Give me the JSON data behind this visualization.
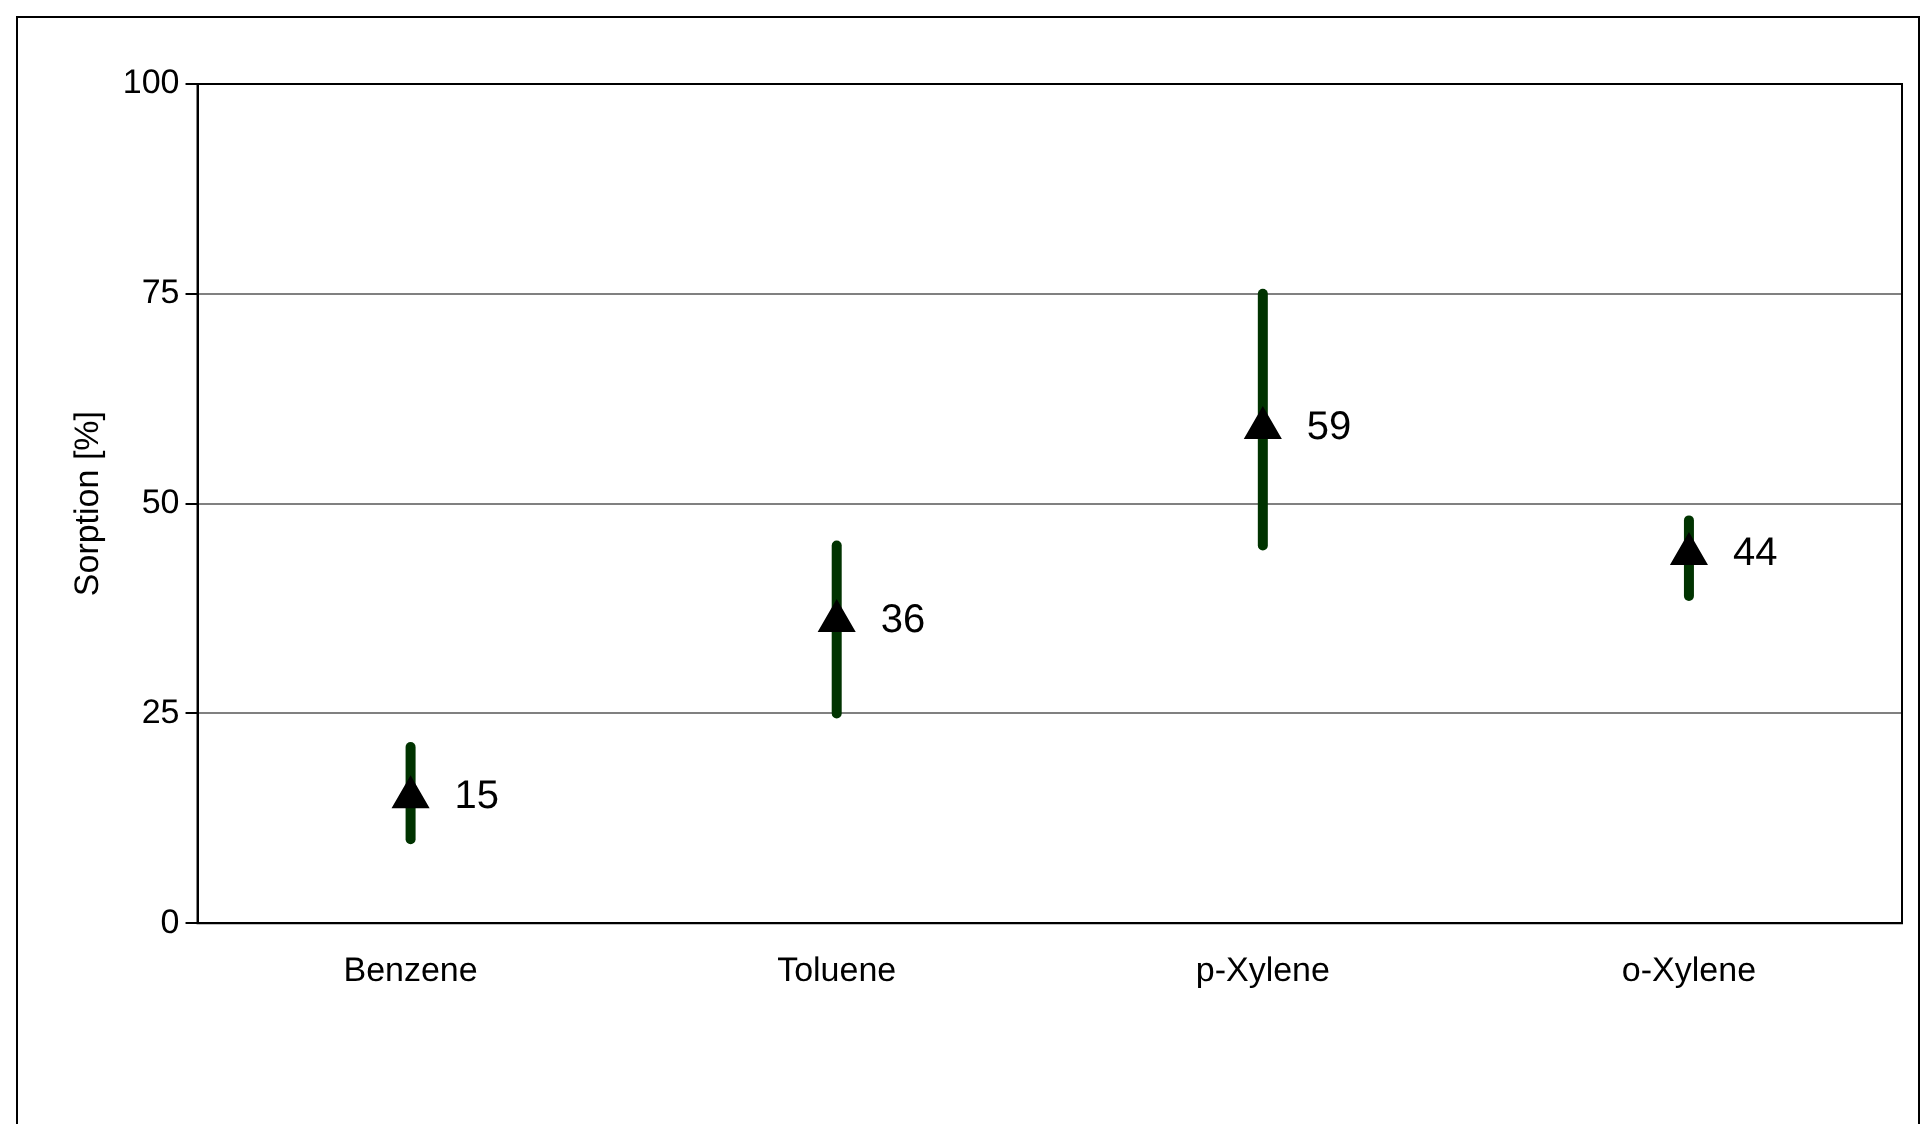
{
  "chart_data": {
    "type": "scatter",
    "ylabel": "Sorption [%]",
    "categories": [
      "Benzene",
      "Toluene",
      "p-Xylene",
      "o-Xylene"
    ],
    "series": [
      {
        "color": "#000000",
        "values": [
          15,
          36,
          59,
          44
        ],
        "errors": [
          [
            10,
            21
          ],
          [
            25,
            45
          ],
          [
            45,
            75
          ],
          [
            39,
            48
          ]
        ]
      }
    ],
    "ylim": [
      0,
      100
    ],
    "yticks": [
      0,
      25,
      50,
      75,
      100
    ],
    "grid": "y",
    "legend": false,
    "marker": "triangle",
    "data_labels": true
  }
}
